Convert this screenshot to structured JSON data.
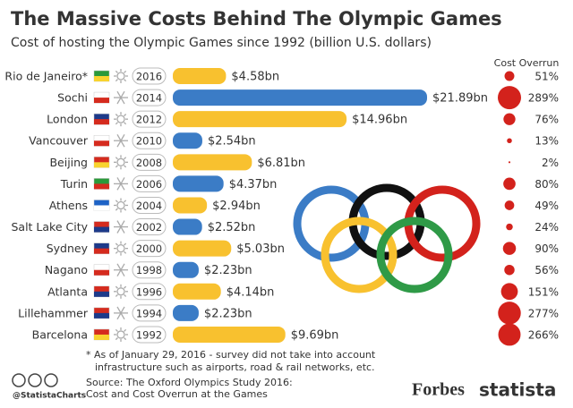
{
  "chart_data": {
    "type": "bar",
    "title": "The Massive Costs Behind The Olympic Games",
    "subtitle": "Cost of hosting the Olympic Games since 1992 (billion U.S. dollars)",
    "categories": [
      "Rio de Janeiro*",
      "Sochi",
      "London",
      "Vancouver",
      "Beijing",
      "Turin",
      "Athens",
      "Salt Lake City",
      "Sydney",
      "Nagano",
      "Atlanta",
      "Lillehammer",
      "Barcelona"
    ],
    "years": [
      2016,
      2014,
      2012,
      2010,
      2008,
      2006,
      2004,
      2002,
      2000,
      1998,
      1996,
      1994,
      1992
    ],
    "values": [
      4.58,
      21.89,
      14.96,
      2.54,
      6.81,
      4.37,
      2.94,
      2.52,
      5.03,
      2.23,
      4.14,
      2.23,
      9.69
    ],
    "value_labels": [
      "$4.58bn",
      "$21.89bn",
      "$14.96bn",
      "$2.54bn",
      "$6.81bn",
      "$4.37bn",
      "$2.94bn",
      "$2.52bn",
      "$5.03bn",
      "$2.23bn",
      "$4.14bn",
      "$2.23bn",
      "$9.69bn"
    ],
    "colors": [
      "#f8c12f",
      "#3b7cc6",
      "#f8c12f",
      "#3b7cc6",
      "#f8c12f",
      "#3b7cc6",
      "#f8c12f",
      "#3b7cc6",
      "#f8c12f",
      "#3b7cc6",
      "#f8c12f",
      "#3b7cc6",
      "#f8c12f"
    ],
    "overrun": {
      "title": "Cost Overrun",
      "color": "#d3221c",
      "values": [
        51,
        289,
        76,
        13,
        2,
        80,
        49,
        24,
        90,
        56,
        151,
        277,
        266
      ],
      "value_labels": [
        "51%",
        "289%",
        "76%",
        "13%",
        "2%",
        "80%",
        "49%",
        "24%",
        "90%",
        "56%",
        "151%",
        "277%",
        "266%"
      ]
    },
    "notes": [
      "* As of January 29, 2016 - survey did not take into account",
      "infrastructure such as airports, road & rail networks, etc."
    ],
    "source": [
      "Source: The Oxford Olympics Study 2016:",
      "Cost and Cost Overrun at the Games"
    ],
    "handle": "@StatistaCharts",
    "logos": [
      "Forbes",
      "statista"
    ]
  }
}
